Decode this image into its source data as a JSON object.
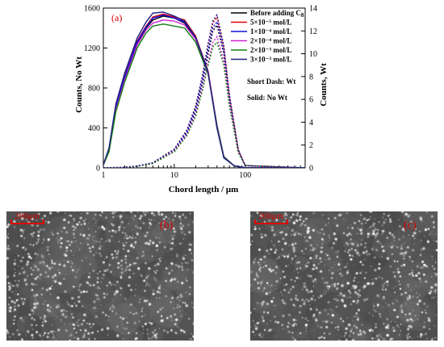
{
  "chart_data": {
    "type": "line",
    "panel_label": "(a)",
    "xlabel": "Chord length / μm",
    "ylabel_left": "Counts, No Wt",
    "ylabel_right": "Counts, Wt",
    "xscale": "log",
    "xlim": [
      1,
      700
    ],
    "ylim_left": [
      0,
      1600
    ],
    "ylim_right": [
      0,
      14
    ],
    "x_ticks": [
      "1",
      "10",
      "100"
    ],
    "y_left_ticks": [
      "0",
      "400",
      "800",
      "1200",
      "1600"
    ],
    "y_right_ticks": [
      "0",
      "2",
      "4",
      "6",
      "8",
      "10",
      "12",
      "14"
    ],
    "legend_placement": "top-right",
    "notes": [
      "Short Dash: Wt",
      "Solid: No Wt"
    ],
    "series": [
      {
        "name": "Before adding C",
        "name_sub": "8",
        "color": "#000000",
        "no_wt": {
          "x": [
            1,
            1.2,
            1.5,
            2,
            3,
            4,
            5,
            7,
            10,
            14,
            20,
            30,
            40,
            50,
            70,
            100,
            700
          ],
          "y": [
            30,
            180,
            600,
            900,
            1250,
            1400,
            1480,
            1520,
            1500,
            1450,
            1300,
            950,
            400,
            100,
            20,
            0,
            0
          ]
        },
        "wt": {
          "x": [
            1,
            2,
            3,
            5,
            10,
            15,
            20,
            25,
            30,
            35,
            40,
            50,
            60,
            80,
            100,
            700
          ],
          "y": [
            0,
            0.05,
            0.15,
            0.4,
            1.5,
            3,
            5,
            7.5,
            10,
            12,
            12.5,
            10,
            6,
            1.5,
            0.2,
            0
          ]
        }
      },
      {
        "name": "5×10⁻⁵ mol/L",
        "color": "#e00000",
        "no_wt": {
          "x": [
            1,
            1.2,
            1.5,
            2,
            3,
            4,
            5,
            7,
            10,
            14,
            20,
            30,
            40,
            50,
            70,
            100,
            700
          ],
          "y": [
            30,
            190,
            620,
            920,
            1270,
            1420,
            1510,
            1540,
            1510,
            1480,
            1320,
            970,
            420,
            110,
            20,
            0,
            0
          ]
        },
        "wt": {
          "x": [
            1,
            2,
            3,
            5,
            10,
            15,
            20,
            25,
            30,
            35,
            40,
            50,
            60,
            80,
            100,
            700
          ],
          "y": [
            0,
            0.05,
            0.15,
            0.45,
            1.6,
            3.2,
            5.3,
            8,
            10.8,
            12.7,
            13.2,
            10.5,
            6.3,
            1.6,
            0.2,
            0
          ]
        }
      },
      {
        "name": "1×10⁻⁴ mol/L",
        "color": "#1010e0",
        "no_wt": {
          "x": [
            1,
            1.2,
            1.5,
            2,
            3,
            4,
            5,
            7,
            10,
            14,
            20,
            30,
            40,
            50,
            70,
            100,
            700
          ],
          "y": [
            30,
            185,
            610,
            910,
            1260,
            1410,
            1500,
            1530,
            1500,
            1460,
            1310,
            960,
            410,
            105,
            20,
            0,
            0
          ]
        },
        "wt": {
          "x": [
            1,
            2,
            3,
            5,
            10,
            15,
            20,
            25,
            30,
            35,
            40,
            50,
            60,
            80,
            100,
            700
          ],
          "y": [
            0,
            0.05,
            0.15,
            0.42,
            1.55,
            3.1,
            5.1,
            7.7,
            10.3,
            12.3,
            12.8,
            10.2,
            6.1,
            1.5,
            0.2,
            0
          ]
        }
      },
      {
        "name": "2×10⁻⁴ mol/L",
        "color": "#d020d0",
        "no_wt": {
          "x": [
            1,
            1.2,
            1.5,
            2,
            3,
            4,
            5,
            7,
            10,
            14,
            20,
            30,
            40,
            50,
            70,
            100,
            700
          ],
          "y": [
            30,
            170,
            580,
            880,
            1230,
            1380,
            1450,
            1480,
            1470,
            1430,
            1290,
            960,
            430,
            115,
            20,
            0,
            0
          ]
        },
        "wt": {
          "x": [
            1,
            2,
            3,
            5,
            10,
            15,
            20,
            25,
            30,
            35,
            40,
            50,
            60,
            80,
            100,
            700
          ],
          "y": [
            0,
            0.05,
            0.14,
            0.4,
            1.5,
            2.9,
            4.7,
            7,
            9.3,
            11,
            11.5,
            9.3,
            5.6,
            1.4,
            0.2,
            0
          ]
        }
      },
      {
        "name": "2×10⁻³ mol/L",
        "color": "#108010",
        "no_wt": {
          "x": [
            1,
            1.2,
            1.5,
            2,
            3,
            4,
            5,
            7,
            10,
            14,
            20,
            30,
            40,
            50,
            70,
            100,
            700
          ],
          "y": [
            30,
            160,
            560,
            860,
            1200,
            1350,
            1420,
            1440,
            1420,
            1400,
            1260,
            940,
            420,
            110,
            20,
            0,
            0
          ]
        },
        "wt": {
          "x": [
            1,
            2,
            3,
            5,
            10,
            15,
            20,
            25,
            30,
            35,
            40,
            50,
            60,
            80,
            100,
            700
          ],
          "y": [
            0,
            0.05,
            0.13,
            0.38,
            1.4,
            2.8,
            4.5,
            6.8,
            9,
            10.6,
            11,
            9,
            5.4,
            1.3,
            0.2,
            0
          ]
        }
      },
      {
        "name": "3×10⁻³ mol/L",
        "color": "#202080",
        "no_wt": {
          "x": [
            1,
            1.2,
            1.5,
            2,
            3,
            4,
            5,
            7,
            10,
            14,
            20,
            30,
            40,
            50,
            70,
            100,
            700
          ],
          "y": [
            30,
            200,
            640,
            950,
            1300,
            1460,
            1550,
            1560,
            1520,
            1470,
            1310,
            950,
            400,
            100,
            20,
            0,
            0
          ]
        },
        "wt": {
          "x": [
            1,
            2,
            3,
            5,
            10,
            15,
            20,
            25,
            30,
            35,
            40,
            50,
            60,
            80,
            100,
            700
          ],
          "y": [
            0,
            0.05,
            0.16,
            0.46,
            1.65,
            3.3,
            5.4,
            8.1,
            10.9,
            12.9,
            13.4,
            10.7,
            6.4,
            1.6,
            0.2,
            0
          ]
        }
      }
    ]
  },
  "micrographs": [
    {
      "label": "(b)",
      "scale_text": "200μm"
    },
    {
      "label": "(c)",
      "scale_text": "200μm"
    }
  ]
}
